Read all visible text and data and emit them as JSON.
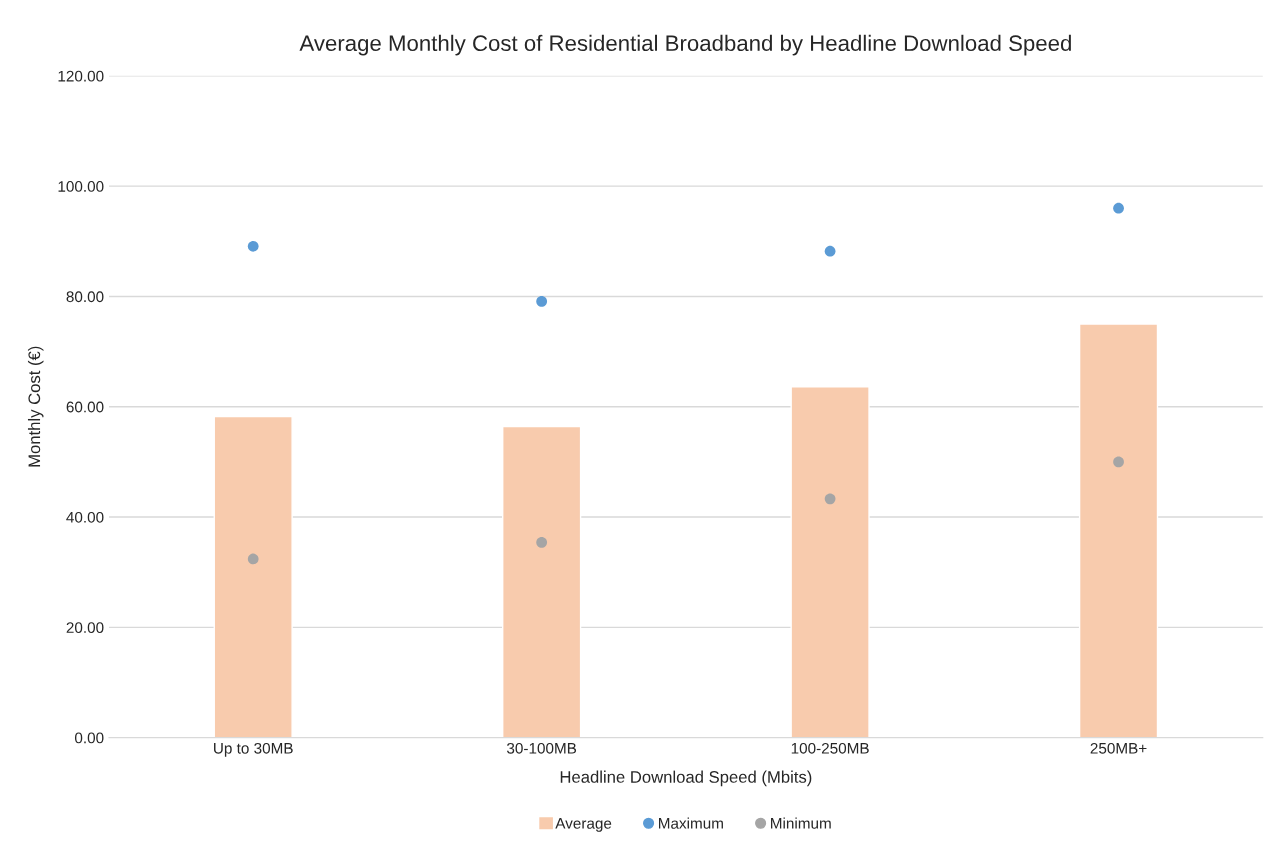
{
  "chart_data": {
    "type": "bar",
    "title": "Average Monthly Cost of Residential Broadband by Headline Download Speed",
    "xlabel": "Headline Download Speed (Mbits)",
    "ylabel": "Monthly Cost (€)",
    "categories": [
      "Up to 30MB",
      "30-100MB",
      "100-250MB",
      "250MB+"
    ],
    "series": [
      {
        "name": "Average",
        "color": "#f8cbad",
        "values": [
          58.2,
          56.4,
          63.6,
          75.0
        ]
      },
      {
        "name": "Maximum",
        "type": "scatter",
        "color": "#5b9bd5",
        "values": [
          89.1,
          79.1,
          88.2,
          96.0
        ]
      },
      {
        "name": "Minimum",
        "type": "scatter",
        "color": "#a5a5a5",
        "values": [
          32.4,
          35.4,
          43.3,
          50.0
        ]
      }
    ],
    "ylim": [
      0,
      120
    ],
    "yticks": [
      {
        "value": 0,
        "label": "0.00"
      },
      {
        "value": 20,
        "label": "20.00"
      },
      {
        "value": 40,
        "label": "40.00"
      },
      {
        "value": 60,
        "label": "60.00"
      },
      {
        "value": 80,
        "label": "80.00"
      },
      {
        "value": 100,
        "label": "100.00"
      },
      {
        "value": 120,
        "label": "120.00"
      }
    ],
    "grid": "y",
    "legend": "bottom",
    "marker": "circle"
  }
}
